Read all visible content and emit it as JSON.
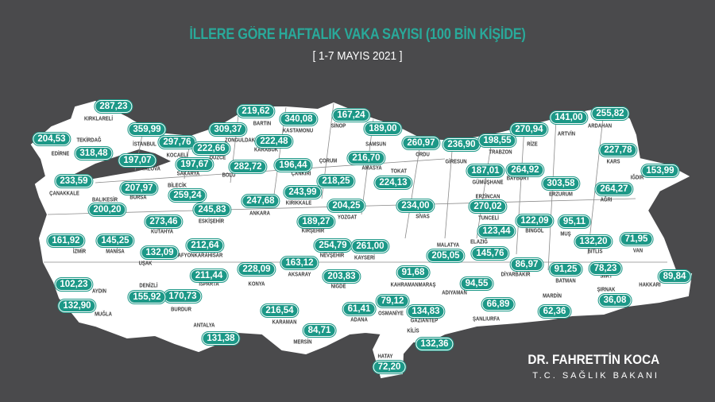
{
  "header": {
    "title": "İLLERE GÖRE HAFTALIK VAKA SAYISI (100 BİN KİŞİDE)",
    "subtitle": "[ 1-7 MAYIS 2021 ]"
  },
  "colors": {
    "background": "#4a4a4c",
    "accent": "#1c9887",
    "land": "#ffffff"
  },
  "provinces": [
    {
      "name": "KIRKLARELİ",
      "value": "287,23"
    },
    {
      "name": "EDİRNE",
      "value": "204,53"
    },
    {
      "name": "TEKİRDAĞ",
      "value": "318,48"
    },
    {
      "name": "İSTANBUL",
      "value": "359,99"
    },
    {
      "name": "KOCAELİ",
      "value": "297,76"
    },
    {
      "name": "YALOVA",
      "value": "197,07"
    },
    {
      "name": "SAKARYA",
      "value": "197,67"
    },
    {
      "name": "DÜZCE",
      "value": "222,66"
    },
    {
      "name": "ZONGULDAK",
      "value": "309,37"
    },
    {
      "name": "BARTIN",
      "value": "219,62"
    },
    {
      "name": "KARABÜK",
      "value": "222,48"
    },
    {
      "name": "KASTAMONU",
      "value": "340,08"
    },
    {
      "name": "SİNOP",
      "value": "167,24"
    },
    {
      "name": "SAMSUN",
      "value": "189,00"
    },
    {
      "name": "ORDU",
      "value": "260,97"
    },
    {
      "name": "GİRESUN",
      "value": "236,90"
    },
    {
      "name": "TRABZON",
      "value": "198,55"
    },
    {
      "name": "RİZE",
      "value": "270,94"
    },
    {
      "name": "ARTVİN",
      "value": "141,00"
    },
    {
      "name": "ARDAHAN",
      "value": "255,82"
    },
    {
      "name": "KARS",
      "value": "227,78"
    },
    {
      "name": "IĞDIR",
      "value": "153,99"
    },
    {
      "name": "AĞRI",
      "value": "264,27"
    },
    {
      "name": "ERZURUM",
      "value": "303,58"
    },
    {
      "name": "BAYBURT",
      "value": "264,92"
    },
    {
      "name": "GÜMÜŞHANE",
      "value": "187,01"
    },
    {
      "name": "ERZİNCAN",
      "value": "270,02"
    },
    {
      "name": "TUNCELİ",
      "value": "123,44"
    },
    {
      "name": "BİNGÖL",
      "value": "122,09"
    },
    {
      "name": "MUŞ",
      "value": "95,11"
    },
    {
      "name": "BİTLİS",
      "value": "132,20"
    },
    {
      "name": "VAN",
      "value": "71,95"
    },
    {
      "name": "HAKKARİ",
      "value": "89,84"
    },
    {
      "name": "ŞIRNAK",
      "value": "36,08"
    },
    {
      "name": "SİİRT",
      "value": "78,23"
    },
    {
      "name": "BATMAN",
      "value": "91,25"
    },
    {
      "name": "MARDİN",
      "value": "62,36"
    },
    {
      "name": "DİYARBAKIR",
      "value": "86,97"
    },
    {
      "name": "ŞANLIURFA",
      "value": "66,89"
    },
    {
      "name": "ADIYAMAN",
      "value": "94,55"
    },
    {
      "name": "GAZİANTEP",
      "value": "134,83"
    },
    {
      "name": "KİLİS",
      "value": "132,36"
    },
    {
      "name": "HATAY",
      "value": "72,20"
    },
    {
      "name": "OSMANİYE",
      "value": "79,12"
    },
    {
      "name": "ADANA",
      "value": "61,41"
    },
    {
      "name": "KAHRAMANMARAŞ",
      "value": "91,68"
    },
    {
      "name": "MALATYA",
      "value": "205,05"
    },
    {
      "name": "ELAZIĞ",
      "value": "145,76"
    },
    {
      "name": "SİVAS",
      "value": "234,00"
    },
    {
      "name": "TOKAT",
      "value": "224,13"
    },
    {
      "name": "AMASYA",
      "value": "216,70"
    },
    {
      "name": "ÇORUM",
      "value": "218,25"
    },
    {
      "name": "ÇANKIRI",
      "value": "196,44"
    },
    {
      "name": "KIRIKKALE",
      "value": "243,99"
    },
    {
      "name": "ANKARA",
      "value": "247,68"
    },
    {
      "name": "YOZGAT",
      "value": "204,25"
    },
    {
      "name": "KIRŞEHİR",
      "value": "189,27"
    },
    {
      "name": "NEVŞEHİR",
      "value": "254,79"
    },
    {
      "name": "KAYSERİ",
      "value": "261,00"
    },
    {
      "name": "AKSARAY",
      "value": "163,12"
    },
    {
      "name": "NİĞDE",
      "value": "203,83"
    },
    {
      "name": "KONYA",
      "value": "228,09"
    },
    {
      "name": "KARAMAN",
      "value": "216,54"
    },
    {
      "name": "MERSİN",
      "value": "84,71"
    },
    {
      "name": "ANTALYA",
      "value": "131,38"
    },
    {
      "name": "BURDUR",
      "value": "170,73"
    },
    {
      "name": "ISPARTA",
      "value": "211,44"
    },
    {
      "name": "DENİZLİ",
      "value": "155,92"
    },
    {
      "name": "AYDIN",
      "value": "102,23"
    },
    {
      "name": "MUĞLA",
      "value": "132,90"
    },
    {
      "name": "İZMİR",
      "value": "161,92"
    },
    {
      "name": "MANİSA",
      "value": "145,25"
    },
    {
      "name": "UŞAK",
      "value": "132,09"
    },
    {
      "name": "AFYONKARAHİSAR",
      "value": "212,64"
    },
    {
      "name": "KÜTAHYA",
      "value": "273,46"
    },
    {
      "name": "ESKİŞEHİR",
      "value": "245,83"
    },
    {
      "name": "BİLECİK",
      "value": "259,24"
    },
    {
      "name": "BALIKESİR",
      "value": "200,20"
    },
    {
      "name": "BURSA",
      "value": "207,97"
    },
    {
      "name": "ÇANAKKALE",
      "value": "233,59"
    },
    {
      "name": "BOLU",
      "value": "282,72"
    }
  ],
  "signature": {
    "name": "DR. FAHRETTİN KOCA",
    "title": "T.C. SAĞLIK BAKANI"
  }
}
